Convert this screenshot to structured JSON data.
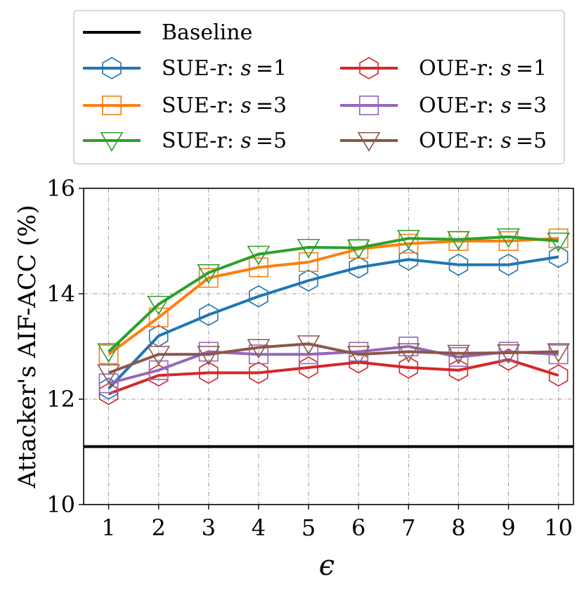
{
  "chart_data": {
    "type": "line",
    "title": "",
    "xlabel": "ϵ",
    "ylabel": "Attacker's AIF-ACC (%)",
    "x": [
      1,
      2,
      3,
      4,
      5,
      6,
      7,
      8,
      9,
      10
    ],
    "xlim": [
      0.5,
      10.3
    ],
    "ylim": [
      10,
      16
    ],
    "xticks": [
      "1",
      "2",
      "3",
      "4",
      "5",
      "6",
      "7",
      "8",
      "9",
      "10"
    ],
    "yticks": [
      "10",
      "12",
      "14",
      "16"
    ],
    "grid": true,
    "legend_position": "top",
    "baseline": {
      "name": "Baseline",
      "value": 11.1,
      "color": "#000000"
    },
    "series": [
      {
        "name": "SUE-r: s =1",
        "prefix": "SUE-r: ",
        "svar": "s",
        "sval": "=1",
        "color": "#1f77b4",
        "marker": "hexagon",
        "values": [
          12.2,
          13.2,
          13.6,
          13.95,
          14.25,
          14.5,
          14.65,
          14.55,
          14.55,
          14.7
        ]
      },
      {
        "name": "SUE-r: s =3",
        "prefix": "SUE-r: ",
        "svar": "s",
        "sval": "=3",
        "color": "#ff7f0e",
        "marker": "square",
        "values": [
          12.85,
          13.55,
          14.3,
          14.5,
          14.6,
          14.85,
          14.95,
          15.0,
          15.0,
          15.05
        ]
      },
      {
        "name": "SUE-r: s =5",
        "prefix": "SUE-r: ",
        "svar": "s",
        "sval": "=5",
        "color": "#2ca02c",
        "marker": "triangle-down",
        "values": [
          12.9,
          13.8,
          14.4,
          14.75,
          14.88,
          14.87,
          15.05,
          15.03,
          15.08,
          15.0
        ]
      },
      {
        "name": "OUE-r: s =1",
        "prefix": "OUE-r: ",
        "svar": "s",
        "sval": "=1",
        "color": "#d62728",
        "marker": "hexagon",
        "values": [
          12.1,
          12.45,
          12.5,
          12.5,
          12.6,
          12.7,
          12.6,
          12.55,
          12.75,
          12.45
        ]
      },
      {
        "name": "OUE-r: s =3",
        "prefix": "OUE-r: ",
        "svar": "s",
        "sval": "=3",
        "color": "#9467bd",
        "marker": "square",
        "values": [
          12.3,
          12.55,
          12.9,
          12.85,
          12.85,
          12.9,
          13.0,
          12.8,
          12.9,
          12.85
        ]
      },
      {
        "name": "OUE-r: s =5",
        "prefix": "OUE-r: ",
        "svar": "s",
        "sval": "=5",
        "color": "#8c564b",
        "marker": "triangle-down",
        "values": [
          12.5,
          12.85,
          12.85,
          12.98,
          13.05,
          12.85,
          12.9,
          12.87,
          12.88,
          12.9
        ]
      }
    ]
  }
}
